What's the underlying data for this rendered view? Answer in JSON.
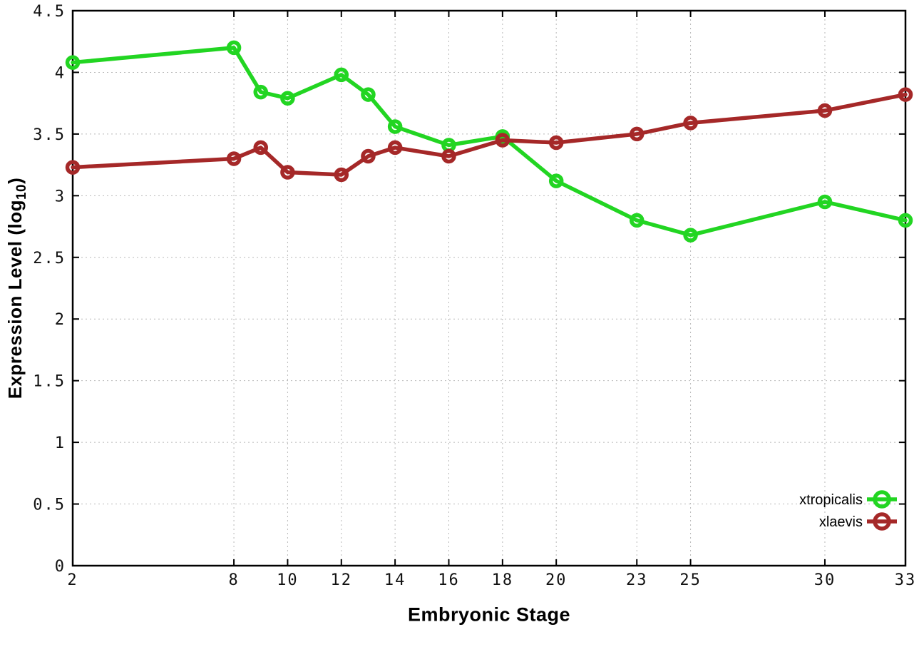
{
  "figure": {
    "xlabel": "Embryonic Stage",
    "ylabel_prefix": "Expression Level (log",
    "ylabel_sub": "10",
    "ylabel_suffix": ")"
  },
  "chart_data": {
    "type": "line",
    "title": "",
    "xlabel": "Embryonic Stage",
    "ylabel": "Expression Level (log10)",
    "xlim": [
      2,
      33
    ],
    "ylim": [
      0,
      4.5
    ],
    "x_ticks": [
      2,
      8,
      10,
      12,
      14,
      16,
      18,
      20,
      23,
      25,
      30,
      33
    ],
    "y_ticks": [
      0,
      0.5,
      1,
      1.5,
      2,
      2.5,
      3,
      3.5,
      4,
      4.5
    ],
    "grid": true,
    "legend_position": "bottom-right-inside",
    "x": [
      2,
      8,
      9,
      10,
      12,
      13,
      14,
      16,
      18,
      20,
      23,
      25,
      30,
      33
    ],
    "series": [
      {
        "name": "xtropicalis",
        "color": "#22d522",
        "values": [
          4.08,
          4.2,
          3.84,
          3.79,
          3.98,
          3.82,
          3.56,
          3.41,
          3.48,
          3.12,
          2.8,
          2.68,
          2.95,
          2.8
        ]
      },
      {
        "name": "xlaevis",
        "color": "#a52828",
        "values": [
          3.23,
          3.3,
          3.39,
          3.19,
          3.17,
          3.32,
          3.39,
          3.32,
          3.45,
          3.43,
          3.5,
          3.59,
          3.69,
          3.82
        ]
      }
    ],
    "style": {
      "background": "#ffffff",
      "border_color": "#000000",
      "grid_color": "#b8b8b8",
      "line_width": 5.5,
      "marker_radius": 7.5,
      "marker_stroke": 5.5
    }
  }
}
